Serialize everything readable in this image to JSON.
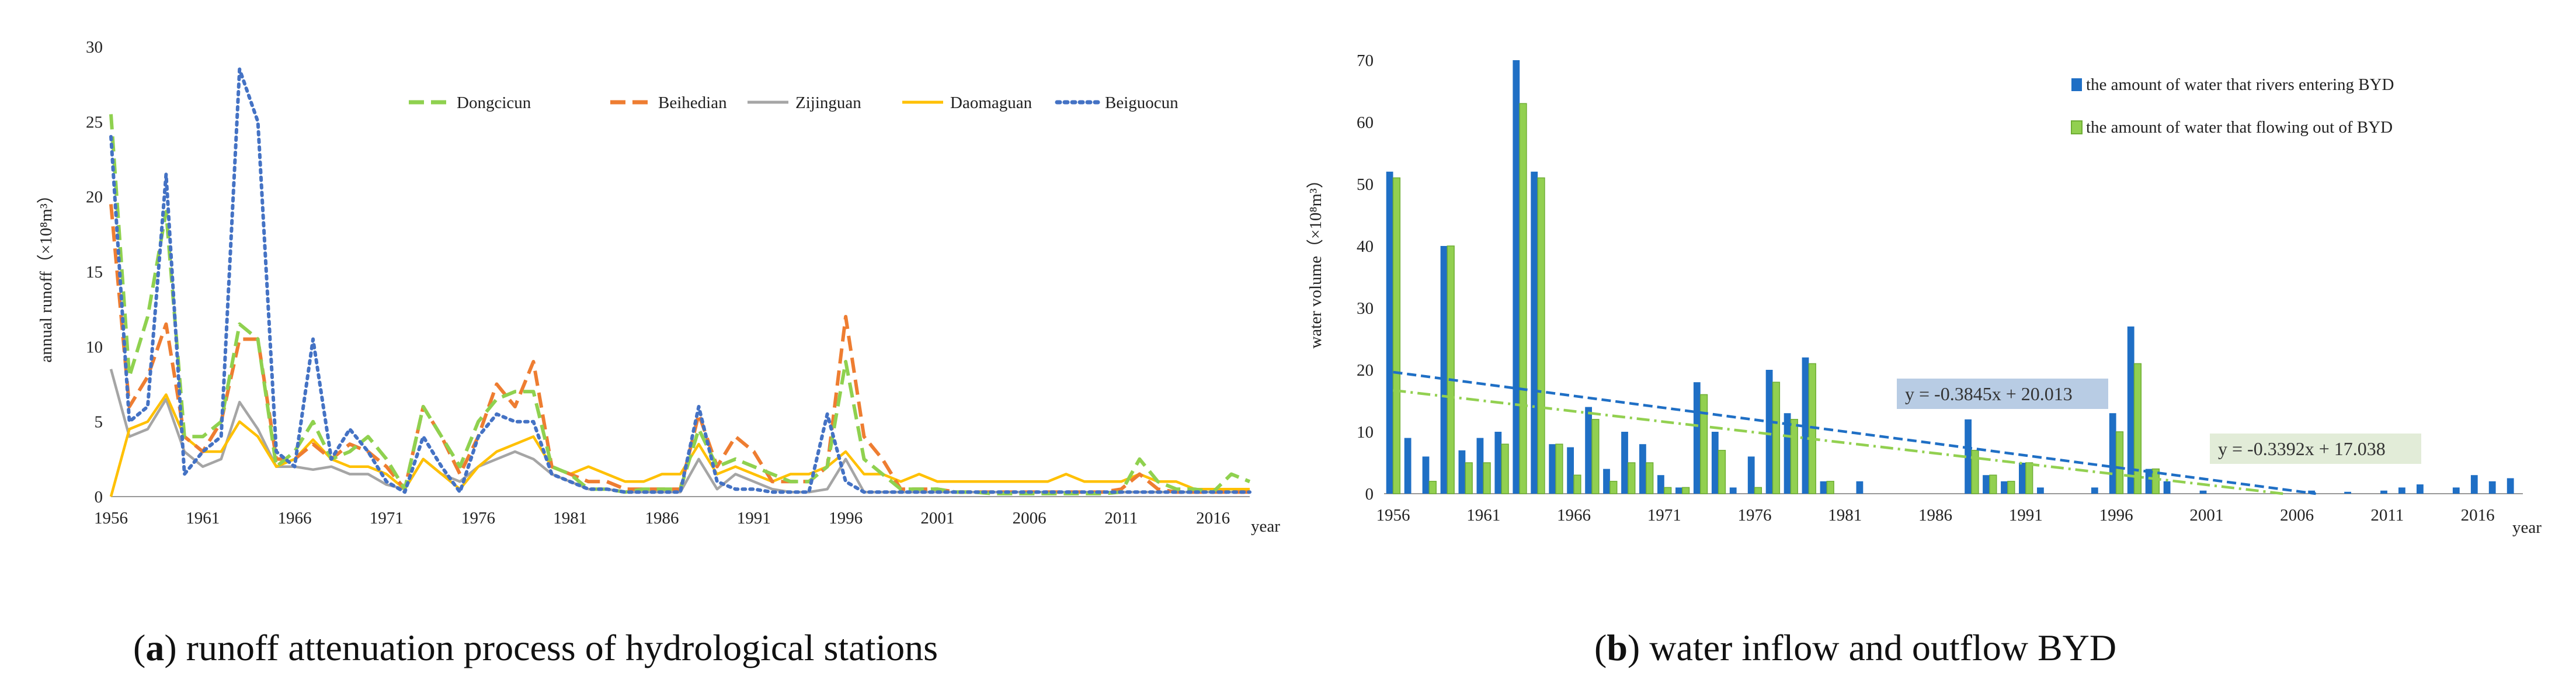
{
  "chart_data": [
    {
      "type": "line",
      "caption": {
        "letter": "a",
        "text": ") runoff attenuation process of hydrological stations"
      },
      "ylabel": "annual runoff（×10⁸m³）",
      "xlabel": "year",
      "ylim": [
        0,
        30
      ],
      "yticks": [
        "0",
        "5",
        "10",
        "15",
        "20",
        "25",
        "30"
      ],
      "xticks": [
        "1956",
        "1961",
        "1966",
        "1971",
        "1976",
        "1981",
        "1986",
        "1991",
        "1996",
        "2001",
        "2006",
        "2011",
        "2016"
      ],
      "x": [
        1956,
        1957,
        1958,
        1959,
        1960,
        1961,
        1962,
        1963,
        1964,
        1965,
        1966,
        1967,
        1968,
        1969,
        1970,
        1971,
        1972,
        1973,
        1974,
        1975,
        1976,
        1977,
        1978,
        1979,
        1980,
        1981,
        1982,
        1983,
        1984,
        1985,
        1986,
        1987,
        1988,
        1989,
        1990,
        1991,
        1992,
        1993,
        1994,
        1995,
        1996,
        1997,
        1998,
        1999,
        2000,
        2001,
        2002,
        2003,
        2004,
        2005,
        2006,
        2007,
        2008,
        2009,
        2010,
        2011,
        2012,
        2013,
        2014,
        2015,
        2016,
        2017,
        2018
      ],
      "series": [
        {
          "name": "Dongcicun",
          "color": "#8fd14f",
          "dash": "dash",
          "values": [
            25.5,
            8,
            12,
            19,
            4,
            4,
            5,
            11.5,
            10.5,
            2,
            3,
            5,
            2.5,
            3,
            4,
            2.5,
            0.5,
            6,
            4,
            2,
            5,
            6.5,
            7,
            7,
            2,
            1.5,
            0.5,
            0.5,
            0.3,
            0.5,
            0.5,
            0.5,
            4.5,
            2,
            2.5,
            2,
            1.5,
            1,
            1,
            2,
            9,
            2.5,
            1.5,
            0.5,
            0.5,
            0.5,
            0.3,
            0.3,
            0.2,
            0.2,
            0.2,
            0.2,
            0.2,
            0.2,
            0.2,
            0.3,
            2.5,
            1,
            0.5,
            0.5,
            0.3,
            1.5,
            1
          ]
        },
        {
          "name": "Beihedian",
          "color": "#ee7d31",
          "dash": "dash",
          "values": [
            19.5,
            6,
            8,
            11.5,
            4,
            3,
            5,
            10.5,
            10.5,
            2.5,
            2.5,
            3.5,
            2.5,
            3.5,
            3,
            2,
            0.5,
            6,
            4,
            1.5,
            4,
            7.5,
            6,
            9,
            2,
            1.5,
            1,
            1,
            0.5,
            0.5,
            0.5,
            0.5,
            5.5,
            2,
            4,
            3,
            1,
            1,
            1,
            2,
            12,
            4,
            2.5,
            0.5,
            0.5,
            0.5,
            0.3,
            0.3,
            0.3,
            0.3,
            0.3,
            0.3,
            0.3,
            0.3,
            0.3,
            0.5,
            1.5,
            0.5,
            0.3,
            0.3,
            0.3,
            0.3,
            0.3
          ]
        },
        {
          "name": "Zijinguan",
          "color": "#a5a5a5",
          "dash": "solid",
          "values": [
            8.5,
            4,
            4.5,
            6.5,
            3,
            2,
            2.5,
            6.3,
            4.5,
            2,
            2,
            1.8,
            2,
            1.5,
            1.5,
            0.8,
            0.5,
            2.5,
            1.5,
            1,
            2,
            2.5,
            3,
            2.5,
            1.5,
            1,
            0.5,
            0.5,
            0.3,
            0.3,
            0.3,
            0.3,
            2.5,
            0.5,
            1.5,
            1,
            0.5,
            0.3,
            0.3,
            0.5,
            2.5,
            0.3,
            0.3,
            0.3,
            0.3,
            0.3,
            0.3,
            0.3,
            0.3,
            0.3,
            0.3,
            0.3,
            0.3,
            0.3,
            0.3,
            0.3,
            0.3,
            0.3,
            0.3,
            0.3,
            0.3,
            0.3,
            0.3
          ]
        },
        {
          "name": "Daomaguan",
          "color": "#ffc000",
          "dash": "solid",
          "values": [
            0,
            4.5,
            5,
            6.8,
            4,
            3,
            3,
            5,
            4,
            2,
            2.5,
            3.8,
            2.5,
            2,
            2,
            1.5,
            0.5,
            2.5,
            1.5,
            0.5,
            2,
            3,
            3.5,
            4,
            2,
            1.5,
            2,
            1.5,
            1,
            1,
            1.5,
            1.5,
            3.5,
            1.5,
            2,
            1.5,
            1,
            1.5,
            1.5,
            2,
            3,
            1.5,
            1.5,
            1,
            1.5,
            1,
            1,
            1,
            1,
            1,
            1,
            1,
            1.5,
            1,
            1,
            1,
            1.5,
            1,
            1,
            0.5,
            0.5,
            0.5,
            0.5
          ]
        },
        {
          "name": "Beiguocun",
          "color": "#4472c4",
          "dash": "dot",
          "values": [
            24,
            5,
            6,
            21.5,
            1.5,
            3,
            4,
            28.5,
            25,
            3,
            2,
            10.5,
            2.5,
            4.5,
            3,
            1,
            0.3,
            4,
            2,
            0.3,
            4,
            5.5,
            5,
            5,
            1.5,
            1,
            0.5,
            0.5,
            0.3,
            0.3,
            0.3,
            0.3,
            6,
            1,
            0.5,
            0.5,
            0.3,
            0.3,
            0.3,
            5.5,
            1,
            0.3,
            0.3,
            0.3,
            0.3,
            0.3,
            0.3,
            0.3,
            0.3,
            0.3,
            0.3,
            0.3,
            0.3,
            0.3,
            0.3,
            0.3,
            0.3,
            0.3,
            0.3,
            0.3,
            0.3,
            0.3,
            0.3
          ]
        }
      ]
    },
    {
      "type": "bar",
      "caption": {
        "letter": "b",
        "text": ") water inflow and outflow BYD"
      },
      "ylabel": "water volume（×10⁸m³）",
      "xlabel": "year",
      "ylim": [
        0,
        70
      ],
      "yticks": [
        "0",
        "10",
        "20",
        "30",
        "40",
        "50",
        "60",
        "70"
      ],
      "xticks": [
        "1956",
        "1961",
        "1966",
        "1971",
        "1976",
        "1981",
        "1986",
        "1991",
        "1996",
        "2001",
        "2006",
        "2011",
        "2016"
      ],
      "x": [
        1956,
        1957,
        1958,
        1959,
        1960,
        1961,
        1962,
        1963,
        1964,
        1965,
        1966,
        1967,
        1968,
        1969,
        1970,
        1971,
        1972,
        1973,
        1974,
        1975,
        1976,
        1977,
        1978,
        1979,
        1980,
        1981,
        1982,
        1983,
        1984,
        1985,
        1986,
        1987,
        1988,
        1989,
        1990,
        1991,
        1992,
        1993,
        1994,
        1995,
        1996,
        1997,
        1998,
        1999,
        2000,
        2001,
        2002,
        2003,
        2004,
        2005,
        2006,
        2007,
        2008,
        2009,
        2010,
        2011,
        2012,
        2013,
        2014,
        2015,
        2016,
        2017,
        2018
      ],
      "series": [
        {
          "name": "the amount of water that rivers entering BYD",
          "color": "#1f6fc5",
          "values": [
            52,
            9,
            6,
            40,
            7,
            9,
            10,
            70,
            52,
            8,
            7.5,
            14,
            4,
            10,
            8,
            3,
            1,
            18,
            10,
            1,
            6,
            20,
            13,
            22,
            2,
            0,
            2,
            0,
            0,
            0,
            0,
            0,
            12,
            3,
            2,
            5,
            1,
            0,
            0,
            1,
            13,
            27,
            4,
            2,
            0,
            0.5,
            0,
            0,
            0,
            0,
            0,
            0.5,
            0,
            0.3,
            0,
            0.5,
            1,
            1.5,
            0,
            1,
            3,
            2,
            2.5
          ]
        },
        {
          "name": "the amount of water that flowing out of BYD",
          "color": "#92d050",
          "values": [
            51,
            0,
            2,
            40,
            5,
            5,
            8,
            63,
            51,
            8,
            3,
            12,
            2,
            5,
            5,
            1,
            1,
            16,
            7,
            0,
            1,
            18,
            12,
            21,
            2,
            0,
            0,
            0,
            0,
            0,
            0,
            0,
            7,
            3,
            2,
            5,
            0,
            0,
            0,
            0,
            10,
            21,
            4,
            0,
            0,
            0,
            0,
            0,
            0,
            0,
            0,
            0,
            0,
            0,
            0,
            0,
            0,
            0,
            0,
            0,
            0,
            0,
            0
          ]
        }
      ],
      "trendlines": [
        {
          "label": "y = -0.3845x + 20.013",
          "slope": -0.3845,
          "intercept": 20.013,
          "color": "#1f6fc5",
          "box": "#b8cce4"
        },
        {
          "label": "y = -0.3392x + 17.038",
          "slope": -0.3392,
          "intercept": 17.038,
          "color": "#92d050",
          "box": "#e2ecd8"
        }
      ]
    }
  ]
}
